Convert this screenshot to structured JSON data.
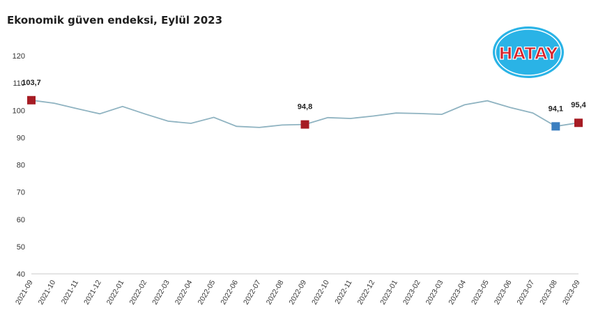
{
  "chart_data": {
    "type": "line",
    "title": "Ekonomik güven endeksi, Eylül 2023",
    "xlabel": "",
    "ylabel": "",
    "ylim": [
      40,
      120
    ],
    "yticks": [
      "40",
      "50",
      "60",
      "70",
      "80",
      "90",
      "100",
      "110",
      "120"
    ],
    "grid": false,
    "line_color": "#8fb3c1",
    "categories": [
      "2021-09",
      "2021-10",
      "2021-11",
      "2021-12",
      "2022-01",
      "2022-02",
      "2022-03",
      "2022-04",
      "2022-05",
      "2022-06",
      "2022-07",
      "2022-08",
      "2022-09",
      "2022-10",
      "2022-11",
      "2022-12",
      "2023-01",
      "2023-02",
      "2023-03",
      "2023-04",
      "2023-05",
      "2023-06",
      "2023-07",
      "2023-08",
      "2023-09"
    ],
    "series": [
      {
        "values": [
          103.7,
          102.6,
          100.6,
          98.7,
          101.4,
          98.6,
          96.0,
          95.2,
          97.4,
          94.1,
          93.7,
          94.6,
          94.8,
          97.3,
          97.0,
          97.9,
          99.0,
          98.8,
          98.5,
          102.0,
          103.5,
          101.0,
          99.0,
          94.1,
          95.4
        ]
      }
    ],
    "markers": [
      {
        "index": 0,
        "label": "103,7",
        "color": "#a61c24"
      },
      {
        "index": 12,
        "label": "94,8",
        "color": "#a61c24"
      },
      {
        "index": 23,
        "label": "94,1",
        "color": "#3c7fc0"
      },
      {
        "index": 24,
        "label": "95,4",
        "color": "#a61c24"
      }
    ]
  },
  "logo": {
    "text": "HATAY",
    "bg_color": "#2ab3e6",
    "text_color": "#d7262e"
  }
}
